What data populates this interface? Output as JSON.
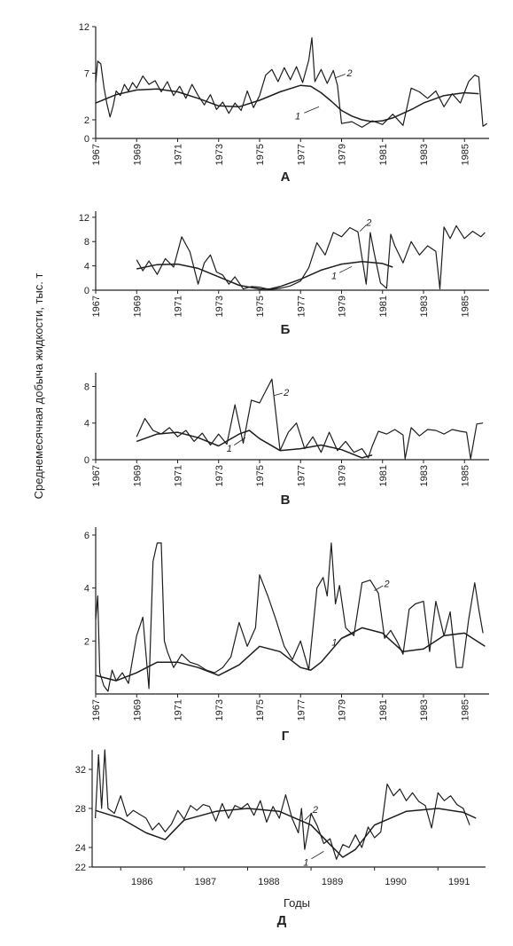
{
  "figure": {
    "ylabel": "Среднемесячная добыча жидкости, тыс. т",
    "xlabel": "Годы"
  },
  "chart_data": [
    {
      "panel": "А",
      "type": "line",
      "x_ticks": [
        "1967",
        "1969",
        "1971",
        "1973",
        "1975",
        "1977",
        "1979",
        "1981",
        "1983",
        "1985"
      ],
      "xlim": [
        1967,
        1986.2
      ],
      "y_ticks": [
        0,
        2,
        7,
        12
      ],
      "ylim": [
        0,
        12
      ],
      "series": [
        {
          "label_mark": "1",
          "x": [
            1967,
            1968,
            1969,
            1970,
            1971,
            1972,
            1973,
            1974,
            1975,
            1976,
            1977,
            1977.5,
            1978,
            1978.5,
            1979,
            1979.5,
            1980,
            1980.5,
            1981,
            1981.5,
            1982,
            1982.5,
            1983,
            1984,
            1985,
            1985.7
          ],
          "y": [
            3.8,
            4.7,
            5.2,
            5.3,
            5.0,
            4.3,
            3.5,
            3.4,
            4.1,
            5.0,
            5.7,
            5.6,
            4.9,
            4.0,
            3.0,
            2.4,
            2.0,
            1.8,
            1.9,
            2.2,
            2.7,
            3.2,
            3.8,
            4.6,
            4.9,
            4.8
          ]
        },
        {
          "label_mark": "2",
          "x": [
            1967,
            1967.1,
            1967.25,
            1967.4,
            1967.55,
            1967.7,
            1967.85,
            1968,
            1968.2,
            1968.4,
            1968.6,
            1968.8,
            1969,
            1969.3,
            1969.6,
            1969.9,
            1970.2,
            1970.5,
            1970.8,
            1971.1,
            1971.4,
            1971.7,
            1972,
            1972.3,
            1972.6,
            1972.9,
            1973.2,
            1973.5,
            1973.8,
            1974.1,
            1974.4,
            1974.7,
            1975,
            1975.3,
            1975.6,
            1975.9,
            1976.2,
            1976.5,
            1976.8,
            1977.1,
            1977.4,
            1977.55,
            1977.7,
            1978,
            1978.3,
            1978.6,
            1978.8,
            1979,
            1979.5,
            1980,
            1980.5,
            1981,
            1981.5,
            1982,
            1982.4,
            1982.8,
            1983.2,
            1983.6,
            1984,
            1984.4,
            1984.8,
            1985.2,
            1985.5,
            1985.7,
            1985.9,
            1986.1
          ],
          "y": [
            6.0,
            8.3,
            8.0,
            5.5,
            3.7,
            2.3,
            3.5,
            5.1,
            4.6,
            5.8,
            5.1,
            6.0,
            5.4,
            6.7,
            5.8,
            6.2,
            5.0,
            6.1,
            4.6,
            5.6,
            4.3,
            5.8,
            4.6,
            3.6,
            4.7,
            3.1,
            3.9,
            2.7,
            3.8,
            3.0,
            5.1,
            3.3,
            4.6,
            6.8,
            7.4,
            6.1,
            7.6,
            6.3,
            7.7,
            6.0,
            8.4,
            10.8,
            6.1,
            7.4,
            5.9,
            7.3,
            5.7,
            1.6,
            1.8,
            1.2,
            1.9,
            1.5,
            2.6,
            1.4,
            5.4,
            5.0,
            4.3,
            5.1,
            3.4,
            4.8,
            3.8,
            6.1,
            6.8,
            6.6,
            1.3,
            1.6
          ]
        }
      ]
    },
    {
      "panel": "Б",
      "type": "line",
      "x_ticks": [
        "1967",
        "1969",
        "1971",
        "1973",
        "1975",
        "1977",
        "1979",
        "1981",
        "1983",
        "1985"
      ],
      "xlim": [
        1967,
        1986.2
      ],
      "y_ticks": [
        0,
        4,
        8,
        12
      ],
      "ylim": [
        0,
        13
      ],
      "series": [
        {
          "label_mark": "1",
          "x": [
            1969,
            1970,
            1971,
            1972,
            1973,
            1974,
            1975,
            1975.5,
            1976,
            1977,
            1978,
            1979,
            1980,
            1981,
            1981.5
          ],
          "y": [
            3.5,
            4.2,
            4.3,
            3.6,
            2.2,
            0.8,
            0.2,
            0.2,
            0.6,
            1.8,
            3.3,
            4.3,
            4.7,
            4.4,
            3.8
          ]
        },
        {
          "label_mark": "2",
          "x": [
            1969,
            1969.3,
            1969.6,
            1970,
            1970.4,
            1970.8,
            1971.2,
            1971.6,
            1972,
            1972.3,
            1972.6,
            1972.9,
            1973.2,
            1973.5,
            1973.8,
            1974.2,
            1974.6,
            1975,
            1975.5,
            1976,
            1976.5,
            1977,
            1977.4,
            1977.8,
            1978.2,
            1978.6,
            1979,
            1979.4,
            1979.8,
            1980.2,
            1980.4,
            1980.6,
            1980.9,
            1981.2,
            1981.4,
            1981.6,
            1982,
            1982.4,
            1982.8,
            1983.2,
            1983.6,
            1983.8,
            1984,
            1984.3,
            1984.6,
            1985,
            1985.4,
            1985.8,
            1986
          ],
          "y": [
            5.0,
            3.2,
            4.8,
            2.6,
            5.2,
            3.8,
            8.8,
            6.3,
            1.0,
            4.5,
            5.8,
            3.0,
            2.5,
            1.0,
            2.2,
            0.2,
            0.6,
            0.5,
            0.1,
            0.3,
            0.7,
            1.5,
            3.7,
            7.8,
            5.8,
            9.5,
            8.8,
            10.3,
            9.6,
            1.0,
            9.5,
            6.0,
            1.2,
            0.3,
            9.2,
            7.3,
            4.5,
            8.0,
            5.8,
            7.3,
            6.4,
            0.2,
            10.4,
            8.5,
            10.6,
            8.5,
            9.7,
            8.8,
            9.5
          ]
        }
      ]
    },
    {
      "panel": "В",
      "type": "line",
      "x_ticks": [
        "1967",
        "1969",
        "1971",
        "1973",
        "1975",
        "1977",
        "1979",
        "1981",
        "1983",
        "1985"
      ],
      "xlim": [
        1967,
        1986.2
      ],
      "y_ticks": [
        0,
        4,
        8
      ],
      "ylim": [
        0,
        9.5
      ],
      "series": [
        {
          "label_mark": "1",
          "x": [
            1969,
            1970,
            1971,
            1972,
            1973,
            1974,
            1974.5,
            1975,
            1976,
            1977,
            1978,
            1979,
            1980,
            1980.5
          ],
          "y": [
            2.0,
            2.8,
            3.0,
            2.4,
            1.5,
            2.8,
            3.2,
            2.3,
            1.0,
            1.2,
            1.6,
            1.1,
            0.2,
            0.5
          ]
        },
        {
          "label_mark": "2",
          "x": [
            1969,
            1969.4,
            1969.8,
            1970.2,
            1970.6,
            1971,
            1971.4,
            1971.8,
            1972.2,
            1972.6,
            1973,
            1973.4,
            1973.8,
            1974.2,
            1974.6,
            1975,
            1975.3,
            1975.6,
            1976,
            1976.4,
            1976.8,
            1977.2,
            1977.6,
            1978,
            1978.4,
            1978.8,
            1979.2,
            1979.6,
            1980,
            1980.3,
            1980.5,
            1980.8,
            1981.2,
            1981.6,
            1982,
            1982.1,
            1982.4,
            1982.8,
            1983.2,
            1983.6,
            1984,
            1984.4,
            1984.8,
            1985.1,
            1985.3,
            1985.6,
            1985.9
          ],
          "y": [
            2.5,
            4.5,
            3.2,
            2.8,
            3.5,
            2.5,
            3.2,
            2.0,
            2.9,
            1.6,
            2.8,
            1.7,
            6.0,
            1.8,
            6.5,
            6.2,
            7.5,
            8.8,
            1.0,
            3.0,
            4.0,
            1.2,
            2.5,
            0.8,
            3.0,
            1.0,
            2.0,
            0.8,
            1.2,
            0.2,
            1.5,
            3.1,
            2.8,
            3.3,
            2.7,
            0.1,
            3.5,
            2.6,
            3.3,
            3.2,
            2.8,
            3.3,
            3.1,
            3.0,
            0.1,
            3.9,
            4.0
          ]
        }
      ]
    },
    {
      "panel": "Г",
      "type": "line",
      "x_ticks": [
        "1967",
        "1969",
        "1971",
        "1973",
        "1975",
        "1977",
        "1979",
        "1981",
        "1983",
        "1985"
      ],
      "xlim": [
        1967,
        1986.2
      ],
      "y_ticks": [
        2,
        4,
        6
      ],
      "ylim": [
        0,
        6.3
      ],
      "series": [
        {
          "label_mark": "1",
          "x": [
            1967,
            1968,
            1969,
            1970,
            1971,
            1972,
            1973,
            1974,
            1975,
            1976,
            1977,
            1977.5,
            1978,
            1979,
            1980,
            1981,
            1982,
            1983,
            1984,
            1985,
            1986
          ],
          "y": [
            0.7,
            0.5,
            0.8,
            1.2,
            1.2,
            1.0,
            0.7,
            1.1,
            1.8,
            1.6,
            1.0,
            0.9,
            1.2,
            2.1,
            2.5,
            2.3,
            1.6,
            1.7,
            2.2,
            2.3,
            1.8
          ]
        },
        {
          "label_mark": "2",
          "x": [
            1967,
            1967.1,
            1967.2,
            1967.4,
            1967.6,
            1967.8,
            1968,
            1968.3,
            1968.6,
            1969,
            1969.3,
            1969.6,
            1969.8,
            1970,
            1970.2,
            1970.35,
            1970.5,
            1970.8,
            1971.2,
            1971.6,
            1972,
            1972.4,
            1972.8,
            1973.2,
            1973.6,
            1974,
            1974.4,
            1974.8,
            1975,
            1975.4,
            1975.8,
            1976.2,
            1976.6,
            1977,
            1977.4,
            1977.8,
            1978.1,
            1978.3,
            1978.5,
            1978.7,
            1978.9,
            1979.2,
            1979.6,
            1980,
            1980.4,
            1980.8,
            1981.1,
            1981.4,
            1981.7,
            1982,
            1982.3,
            1982.6,
            1983,
            1983.3,
            1983.6,
            1984,
            1984.3,
            1984.6,
            1984.9,
            1985.2,
            1985.5,
            1985.7,
            1985.9
          ],
          "y": [
            2.8,
            3.7,
            0.8,
            0.3,
            0.1,
            0.9,
            0.5,
            0.8,
            0.4,
            2.2,
            2.9,
            0.2,
            5.0,
            5.7,
            5.7,
            2.0,
            1.6,
            1.0,
            1.5,
            1.2,
            1.1,
            0.9,
            0.8,
            1.0,
            1.4,
            2.7,
            1.8,
            2.5,
            4.5,
            3.7,
            2.8,
            1.8,
            1.3,
            2.0,
            0.9,
            4.0,
            4.4,
            3.7,
            5.7,
            3.4,
            4.1,
            2.5,
            2.2,
            4.2,
            4.3,
            3.8,
            2.1,
            2.4,
            2.0,
            1.5,
            3.2,
            3.4,
            3.5,
            1.6,
            3.5,
            2.2,
            3.1,
            1.0,
            1.0,
            2.8,
            4.2,
            3.2,
            2.3
          ]
        }
      ]
    },
    {
      "panel": "Д",
      "type": "line",
      "x_ticks": [
        "1986",
        "1987",
        "1988",
        "1989",
        "1990",
        "1991"
      ],
      "xlim": [
        1985.55,
        1991.75
      ],
      "y_ticks": [
        22,
        24,
        28,
        32
      ],
      "ylim": [
        22,
        34
      ],
      "series": [
        {
          "label_mark": "1",
          "x": [
            1985.6,
            1986,
            1986.4,
            1986.7,
            1987,
            1987.5,
            1988,
            1988.5,
            1989,
            1989.3,
            1989.5,
            1989.7,
            1990,
            1990.5,
            1991,
            1991.4,
            1991.6
          ],
          "y": [
            27.8,
            27.0,
            25.5,
            24.8,
            26.8,
            27.7,
            28.0,
            27.7,
            26.3,
            24.3,
            23.0,
            23.8,
            26.3,
            27.7,
            28.0,
            27.6,
            27.0
          ]
        },
        {
          "label_mark": "2",
          "x": [
            1985.6,
            1985.65,
            1985.7,
            1985.75,
            1985.8,
            1985.9,
            1986,
            1986.1,
            1986.2,
            1986.3,
            1986.4,
            1986.5,
            1986.6,
            1986.7,
            1986.8,
            1986.9,
            1987,
            1987.1,
            1987.2,
            1987.3,
            1987.4,
            1987.5,
            1987.6,
            1987.7,
            1987.8,
            1987.9,
            1988,
            1988.1,
            1988.2,
            1988.3,
            1988.4,
            1988.5,
            1988.6,
            1988.7,
            1988.8,
            1988.85,
            1988.9,
            1989,
            1989.1,
            1989.2,
            1989.3,
            1989.4,
            1989.5,
            1989.6,
            1989.7,
            1989.8,
            1989.9,
            1990,
            1990.1,
            1990.2,
            1990.3,
            1990.4,
            1990.5,
            1990.6,
            1990.7,
            1990.8,
            1990.9,
            1991,
            1991.1,
            1991.2,
            1991.3,
            1991.4,
            1991.5
          ],
          "y": [
            27.0,
            33.5,
            28.0,
            34.0,
            28.0,
            27.5,
            29.3,
            27.2,
            27.8,
            27.4,
            27.0,
            25.8,
            26.5,
            25.6,
            26.4,
            27.8,
            26.9,
            28.3,
            27.8,
            28.4,
            28.2,
            26.7,
            28.5,
            27.0,
            28.3,
            28.0,
            28.5,
            27.3,
            28.8,
            26.6,
            28.2,
            27.0,
            29.4,
            27.0,
            25.5,
            28.0,
            23.8,
            27.5,
            26.2,
            24.4,
            24.9,
            22.8,
            24.3,
            24.0,
            25.3,
            24.0,
            26.1,
            25.0,
            25.6,
            30.5,
            29.3,
            30.0,
            28.8,
            29.6,
            28.7,
            28.3,
            26.0,
            29.6,
            28.8,
            29.3,
            28.4,
            28.0,
            26.3
          ]
        }
      ]
    }
  ]
}
